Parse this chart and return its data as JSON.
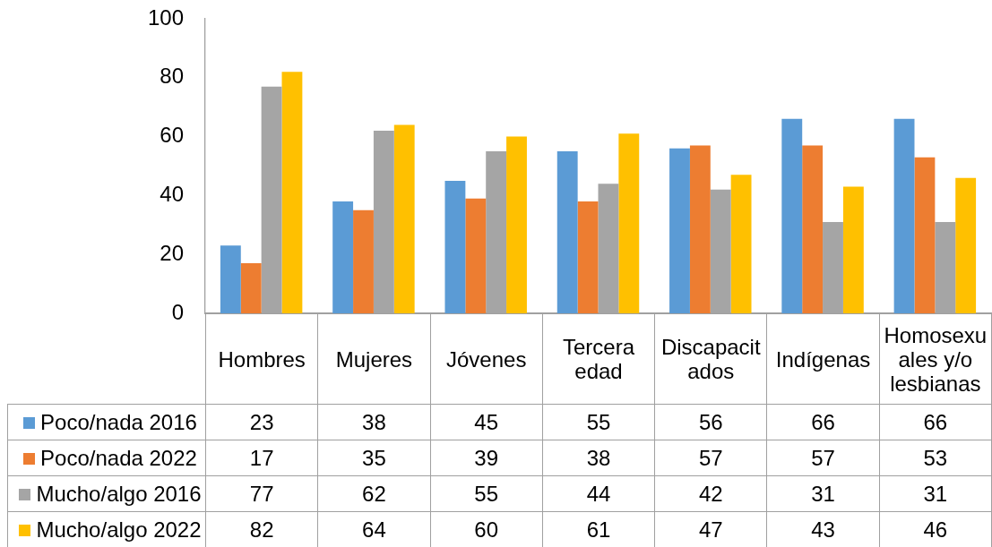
{
  "chart_data": {
    "type": "bar",
    "categories": [
      "Hombres",
      "Mujeres",
      "Jóvenes",
      "Tercera edad",
      "Discapacitados",
      "Indígenas",
      "Homosexuales y/o lesbianas"
    ],
    "series": [
      {
        "name": "Poco/nada 2016",
        "color": "#5b9bd5",
        "values": [
          23,
          38,
          45,
          55,
          56,
          66,
          66
        ]
      },
      {
        "name": "Poco/nada 2022",
        "color": "#ed7d31",
        "values": [
          17,
          35,
          39,
          38,
          57,
          57,
          53
        ]
      },
      {
        "name": "Mucho/algo 2016",
        "color": "#a5a5a5",
        "values": [
          77,
          62,
          55,
          44,
          42,
          31,
          31
        ]
      },
      {
        "name": "Mucho/algo 2022",
        "color": "#ffc000",
        "values": [
          82,
          64,
          60,
          61,
          47,
          43,
          46
        ]
      }
    ],
    "ylim": [
      0,
      100
    ],
    "yticks": [
      0,
      20,
      40,
      60,
      80,
      100
    ],
    "legend": "bottom left",
    "data_labels": true
  }
}
